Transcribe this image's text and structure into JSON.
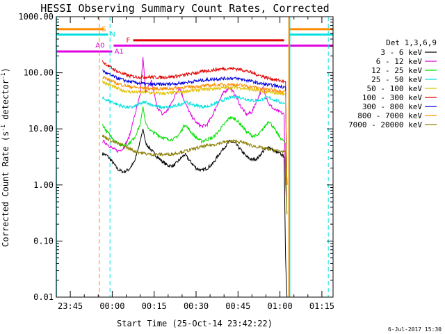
{
  "chart_data": {
    "type": "line",
    "title": "HESSI Observing Summary Count Rates, Corrected",
    "xlabel": "Start Time (25-Oct-14 23:42:22)",
    "ylabel_main": "Corrected Count Rate (s",
    "ylabel_sup1": "-1",
    "ylabel_mid": " detector",
    "ylabel_sup2": "-1",
    "ylabel_end": ")",
    "yscale": "log",
    "ylim": [
      0.01,
      1000
    ],
    "xlim": [
      -20,
      79
    ],
    "x_unit": "minutes since 00:00 UT (26-Oct-14)",
    "x_ticks": [
      {
        "value": -15,
        "label": "23:45"
      },
      {
        "value": 0,
        "label": "00:00"
      },
      {
        "value": 15,
        "label": "00:15"
      },
      {
        "value": 30,
        "label": "00:30"
      },
      {
        "value": 45,
        "label": "00:45"
      },
      {
        "value": 60,
        "label": "01:00"
      },
      {
        "value": 75,
        "label": "01:15"
      }
    ],
    "y_ticks": [
      {
        "value": 1000,
        "label": "1000.00"
      },
      {
        "value": 100,
        "label": "100.00"
      },
      {
        "value": 10,
        "label": "10.00"
      },
      {
        "value": 1,
        "label": "1.00"
      },
      {
        "value": 0.1,
        "label": "0.10"
      },
      {
        "value": 0.01,
        "label": "0.01"
      }
    ],
    "legend_title": "Det 1,3,6,9",
    "legend_position": "right",
    "series": [
      {
        "name": "3 - 6 keV",
        "color": "#000000",
        "x": [
          -3.5,
          -2,
          0,
          2,
          4,
          6,
          8,
          10,
          11,
          12,
          14,
          16,
          18,
          20,
          22,
          24,
          26,
          28,
          30,
          32,
          34,
          36,
          38,
          40,
          42,
          44,
          46,
          48,
          50,
          52,
          54,
          56,
          58,
          60,
          61.5,
          62,
          62.5
        ],
        "y": [
          3.6,
          3.4,
          2.6,
          1.9,
          1.7,
          1.9,
          2.6,
          6,
          10,
          5.5,
          4.2,
          3.2,
          2.6,
          2.2,
          2.2,
          2.8,
          3.5,
          2.6,
          2,
          1.8,
          2,
          2.4,
          3.4,
          4.6,
          6,
          5.5,
          4.2,
          3.2,
          2.8,
          3,
          4,
          4.8,
          4,
          3.6,
          3.2,
          0.05,
          0.01
        ]
      },
      {
        "name": "6 - 12 keV",
        "color": "#e000e0",
        "x": [
          -3.5,
          -2,
          0,
          2,
          4,
          6,
          8,
          10,
          11,
          12,
          13,
          14,
          16,
          18,
          20,
          22,
          24,
          26,
          28,
          30,
          32,
          34,
          36,
          38,
          40,
          42,
          44,
          46,
          48,
          50,
          52,
          54,
          56,
          58,
          60,
          61.5,
          62,
          62.5
        ],
        "y": [
          6,
          5.5,
          4.5,
          4,
          4.5,
          7,
          17,
          40,
          190,
          45,
          60,
          70,
          25,
          18,
          22,
          35,
          55,
          30,
          18,
          13,
          11,
          12,
          18,
          30,
          45,
          55,
          40,
          25,
          18,
          20,
          35,
          55,
          28,
          22,
          20,
          18,
          1,
          0.4
        ]
      },
      {
        "name": "12 - 25 keV",
        "color": "#00e000",
        "x": [
          -3.5,
          -2,
          0,
          2,
          4,
          6,
          8,
          10,
          11,
          12,
          14,
          16,
          18,
          20,
          22,
          24,
          26,
          28,
          30,
          32,
          34,
          36,
          38,
          40,
          42,
          44,
          46,
          48,
          50,
          52,
          54,
          56,
          58,
          60,
          61.5,
          62,
          62.5
        ],
        "y": [
          12,
          9,
          7,
          5.5,
          5,
          5.5,
          7,
          12,
          25,
          12,
          9,
          8,
          7,
          6.5,
          6.5,
          8,
          12,
          9,
          7,
          6,
          6.5,
          7,
          9,
          12,
          16,
          15,
          12,
          9,
          7.5,
          7.5,
          10,
          14,
          10,
          7,
          6,
          5.5,
          0.3
        ]
      },
      {
        "name": "25 - 50 keV",
        "color": "#00e0e0",
        "x": [
          -3.5,
          -2,
          0,
          2,
          4,
          6,
          8,
          10,
          12,
          14,
          16,
          18,
          20,
          22,
          24,
          26,
          28,
          30,
          32,
          34,
          36,
          38,
          40,
          42,
          44,
          46,
          48,
          50,
          52,
          54,
          56,
          58,
          60,
          61.5,
          62,
          62.5
        ],
        "y": [
          35,
          33,
          30,
          27,
          25,
          24,
          25,
          28,
          30,
          27,
          25,
          24,
          24,
          25,
          27,
          30,
          28,
          26,
          25,
          25,
          27,
          30,
          33,
          36,
          38,
          36,
          34,
          32,
          32,
          34,
          36,
          33,
          30,
          29,
          28,
          1
        ]
      },
      {
        "name": "50 - 100 keV",
        "color": "#e0c000",
        "x": [
          -3.5,
          -2,
          0,
          2,
          4,
          6,
          8,
          10,
          12,
          14,
          16,
          18,
          20,
          22,
          24,
          26,
          28,
          30,
          32,
          34,
          36,
          38,
          40,
          42,
          44,
          46,
          48,
          50,
          52,
          54,
          56,
          58,
          60,
          61.5,
          62,
          62.5
        ],
        "y": [
          70,
          64,
          58,
          52,
          48,
          46,
          45,
          45,
          45,
          44,
          43,
          43,
          43,
          44,
          45,
          47,
          48,
          49,
          50,
          51,
          52,
          53,
          54,
          55,
          55,
          54,
          52,
          50,
          48,
          46,
          45,
          44,
          43,
          42,
          42,
          1
        ]
      },
      {
        "name": "100 - 300 keV",
        "color": "#e00000",
        "x": [
          -3.5,
          -2,
          0,
          2,
          4,
          6,
          8,
          10,
          12,
          14,
          16,
          18,
          20,
          22,
          24,
          26,
          28,
          30,
          32,
          34,
          36,
          38,
          40,
          42,
          44,
          46,
          48,
          50,
          52,
          54,
          56,
          58,
          60,
          61.5,
          62,
          62.5
        ],
        "y": [
          160,
          140,
          120,
          105,
          95,
          88,
          85,
          84,
          84,
          84,
          83,
          83,
          84,
          86,
          88,
          92,
          96,
          100,
          104,
          108,
          112,
          116,
          118,
          120,
          118,
          114,
          108,
          100,
          92,
          86,
          80,
          76,
          72,
          70,
          70,
          1
        ]
      },
      {
        "name": "300 - 800 keV",
        "color": "#0000e0",
        "x": [
          -3.5,
          -2,
          0,
          2,
          4,
          6,
          8,
          10,
          12,
          14,
          16,
          18,
          20,
          22,
          24,
          26,
          28,
          30,
          32,
          34,
          36,
          38,
          40,
          42,
          44,
          46,
          48,
          50,
          52,
          54,
          56,
          58,
          60,
          61.5,
          62,
          62.5
        ],
        "y": [
          110,
          98,
          88,
          80,
          74,
          70,
          67,
          65,
          63,
          62,
          62,
          62,
          63,
          64,
          65,
          67,
          69,
          71,
          73,
          75,
          77,
          78,
          79,
          80,
          79,
          77,
          74,
          70,
          66,
          63,
          61,
          59,
          57,
          56,
          56,
          1
        ]
      },
      {
        "name": "800 - 7000 keV",
        "color": "#ff8c00",
        "x": [
          -3.5,
          -2,
          0,
          2,
          4,
          6,
          8,
          10,
          12,
          14,
          16,
          18,
          20,
          22,
          24,
          26,
          28,
          30,
          32,
          34,
          36,
          38,
          40,
          42,
          44,
          46,
          48,
          50,
          52,
          54,
          56,
          58,
          60,
          61.5,
          62,
          62.5
        ],
        "y": [
          85,
          78,
          70,
          64,
          60,
          57,
          55,
          54,
          53,
          52,
          52,
          52,
          52,
          53,
          54,
          55,
          56,
          57,
          58,
          59,
          60,
          61,
          62,
          62,
          61,
          60,
          58,
          56,
          54,
          52,
          50,
          49,
          48,
          47,
          47,
          1
        ]
      },
      {
        "name": "7000 - 20000 keV",
        "color": "#8b7d00",
        "x": [
          -3.5,
          -2,
          0,
          2,
          4,
          6,
          8,
          10,
          12,
          14,
          16,
          18,
          20,
          22,
          24,
          26,
          28,
          30,
          32,
          34,
          36,
          38,
          40,
          42,
          44,
          46,
          48,
          50,
          52,
          54,
          56,
          58,
          60,
          61.5,
          62,
          62.5
        ],
        "y": [
          7.5,
          6.8,
          6,
          5.5,
          5,
          4.5,
          4,
          3.8,
          3.6,
          3.5,
          3.5,
          3.5,
          3.5,
          3.6,
          3.8,
          4,
          4.2,
          4.5,
          4.8,
          5,
          5.2,
          5.5,
          5.8,
          6,
          6,
          5.8,
          5.5,
          5,
          4.8,
          4.5,
          4.3,
          4.2,
          4,
          4,
          4,
          0.3
        ]
      }
    ],
    "flags": [
      {
        "label": "S",
        "color": "#ff8c00",
        "x_start": -20,
        "x_end": -3,
        "y": 600,
        "label_x": -3.8
      },
      {
        "label": "N",
        "color": "#00e0e0",
        "x_start": -20,
        "x_end": -1.5,
        "y": 480,
        "label_x": -0.8
      },
      {
        "label": "F",
        "color": "#e00000",
        "x_start": 7.5,
        "x_end": 61.5,
        "y": 380,
        "label_x": 5
      },
      {
        "label": "A0",
        "color": "#e000e0",
        "x_start": 0.5,
        "x_end": 79,
        "y": 305,
        "label_x": -6
      },
      {
        "label": "A1",
        "color": "#e000e0",
        "x_start": -20,
        "x_end": 0,
        "y": 240,
        "label_x": 0.8
      },
      {
        "label": "",
        "color": "#ff8c00",
        "x_start": 63.3,
        "x_end": 79,
        "y": 600
      },
      {
        "label": "",
        "color": "#00e0e0",
        "x_start": 63.3,
        "x_end": 79,
        "y": 480
      }
    ],
    "vlines": [
      {
        "x": -4.6,
        "color": "#ff8c00",
        "dashed": true
      },
      {
        "x": -0.8,
        "color": "#00e0e0",
        "dashed": true
      },
      {
        "x": 77.3,
        "color": "#00e0e0",
        "dashed": true
      },
      {
        "x": 63.2,
        "color": "#ff8c00",
        "dashed": false
      },
      {
        "x": 63.5,
        "color": "#00e0e0",
        "dashed": false
      },
      {
        "x": -20,
        "color": "#00e0e0",
        "dashed": false
      }
    ],
    "grid": false
  },
  "footer": {
    "timestamp": "6-Jul-2017 15:30"
  }
}
